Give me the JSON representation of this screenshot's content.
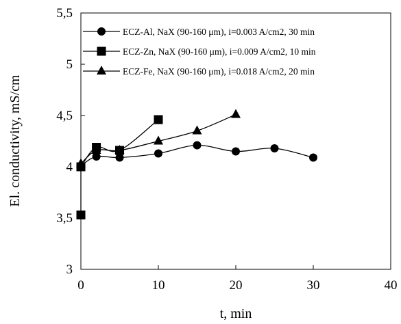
{
  "chart_data": {
    "type": "line",
    "xlabel": "t, min",
    "ylabel": "El. conductivity, mS/cm",
    "xlim": [
      0,
      40
    ],
    "ylim": [
      3,
      5.5
    ],
    "x_ticks": [
      "0",
      "10",
      "20",
      "30",
      "40"
    ],
    "y_ticks": [
      "3",
      "3,5",
      "4",
      "4,5",
      "5",
      "5,5"
    ],
    "grid": false,
    "legend_position": "top-right",
    "series": [
      {
        "name": "ECZ-Al, NaX (90-160 μm), i=0.003 A/cm2, 30 min",
        "marker": "circle",
        "x": [
          0,
          2,
          5,
          10,
          15,
          20,
          25,
          30
        ],
        "y": [
          4.01,
          4.1,
          4.09,
          4.13,
          4.21,
          4.15,
          4.18,
          4.09
        ]
      },
      {
        "name": "ECZ-Zn, NaX (90-160 μm), i=0.009 A/cm2, 10 min",
        "marker": "square",
        "x": [
          0,
          0,
          2,
          5,
          10
        ],
        "y": [
          3.53,
          4.0,
          4.19,
          4.16,
          4.46
        ]
      },
      {
        "name": "ECZ-Fe, NaX (90-160 μm), i=0.018 A/cm2, 20 min",
        "marker": "triangle",
        "x": [
          0,
          2,
          5,
          10,
          15,
          20
        ],
        "y": [
          4.03,
          4.16,
          4.16,
          4.25,
          4.35,
          4.51
        ]
      }
    ]
  }
}
